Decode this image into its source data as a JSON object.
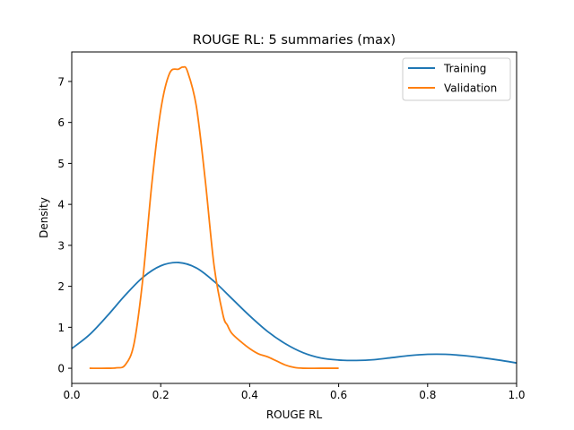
{
  "chart_data": {
    "type": "line",
    "title": "ROUGE RL: 5 summaries (max)",
    "xlabel": "ROUGE RL",
    "ylabel": "Density",
    "xlim": [
      0.0,
      1.0
    ],
    "ylim": [
      -0.37,
      7.72
    ],
    "x_ticks": [
      0.0,
      0.2,
      0.4,
      0.6,
      0.8,
      1.0
    ],
    "x_tick_labels": [
      "0.0",
      "0.2",
      "0.4",
      "0.6",
      "0.8",
      "1.0"
    ],
    "y_ticks": [
      0,
      1,
      2,
      3,
      4,
      5,
      6,
      7
    ],
    "y_tick_labels": [
      "0",
      "1",
      "2",
      "3",
      "4",
      "5",
      "6",
      "7"
    ],
    "grid": false,
    "legend_position": "top-right",
    "series": [
      {
        "name": "Training",
        "color": "#1f77b4",
        "x": [
          0.0,
          0.04,
          0.08,
          0.12,
          0.16,
          0.2,
          0.24,
          0.28,
          0.32,
          0.36,
          0.4,
          0.44,
          0.48,
          0.52,
          0.56,
          0.6,
          0.64,
          0.68,
          0.72,
          0.76,
          0.8,
          0.84,
          0.88,
          0.92,
          0.96,
          1.0
        ],
        "y": [
          0.48,
          0.82,
          1.28,
          1.78,
          2.22,
          2.5,
          2.58,
          2.45,
          2.12,
          1.7,
          1.28,
          0.9,
          0.6,
          0.38,
          0.25,
          0.2,
          0.19,
          0.21,
          0.26,
          0.31,
          0.34,
          0.34,
          0.31,
          0.26,
          0.2,
          0.13
        ]
      },
      {
        "name": "Validation",
        "color": "#ff7f0e",
        "x": [
          0.04,
          0.08,
          0.1,
          0.12,
          0.14,
          0.16,
          0.18,
          0.2,
          0.22,
          0.24,
          0.25,
          0.26,
          0.28,
          0.3,
          0.32,
          0.34,
          0.35,
          0.36,
          0.38,
          0.4,
          0.42,
          0.44,
          0.46,
          0.48,
          0.5,
          0.52,
          0.56,
          0.6
        ],
        "y": [
          0.0,
          0.0,
          0.01,
          0.08,
          0.6,
          2.2,
          4.5,
          6.3,
          7.2,
          7.3,
          7.35,
          7.25,
          6.4,
          4.6,
          2.5,
          1.3,
          1.05,
          0.85,
          0.65,
          0.48,
          0.35,
          0.28,
          0.18,
          0.08,
          0.02,
          0.0,
          0.0,
          0.0
        ]
      }
    ]
  }
}
